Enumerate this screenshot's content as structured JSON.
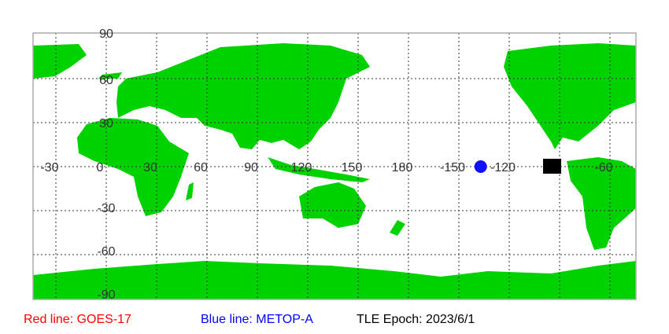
{
  "map": {
    "lon_labels": [
      "-30",
      "0",
      "30",
      "60",
      "90",
      "120",
      "150",
      "180",
      "-150",
      "-120",
      "-60"
    ],
    "lat_labels": [
      "90",
      "60",
      "30",
      "-30",
      "-60",
      "-90"
    ],
    "colors": {
      "land": "#00d200",
      "grid": "#333333",
      "border": "#aaaaaa",
      "marker": "#1010ff"
    },
    "markers": [
      {
        "type": "satellite-position",
        "color": "#1010ff",
        "lon": -137,
        "lat": 0
      }
    ]
  },
  "legend": {
    "red_line": "Red line: GOES-17",
    "blue_line": "Blue line: METOP-A",
    "tle_epoch": "TLE Epoch: 2023/6/1",
    "colors": {
      "red": "#ff0000",
      "blue": "#0000ff",
      "black": "#000000"
    }
  }
}
